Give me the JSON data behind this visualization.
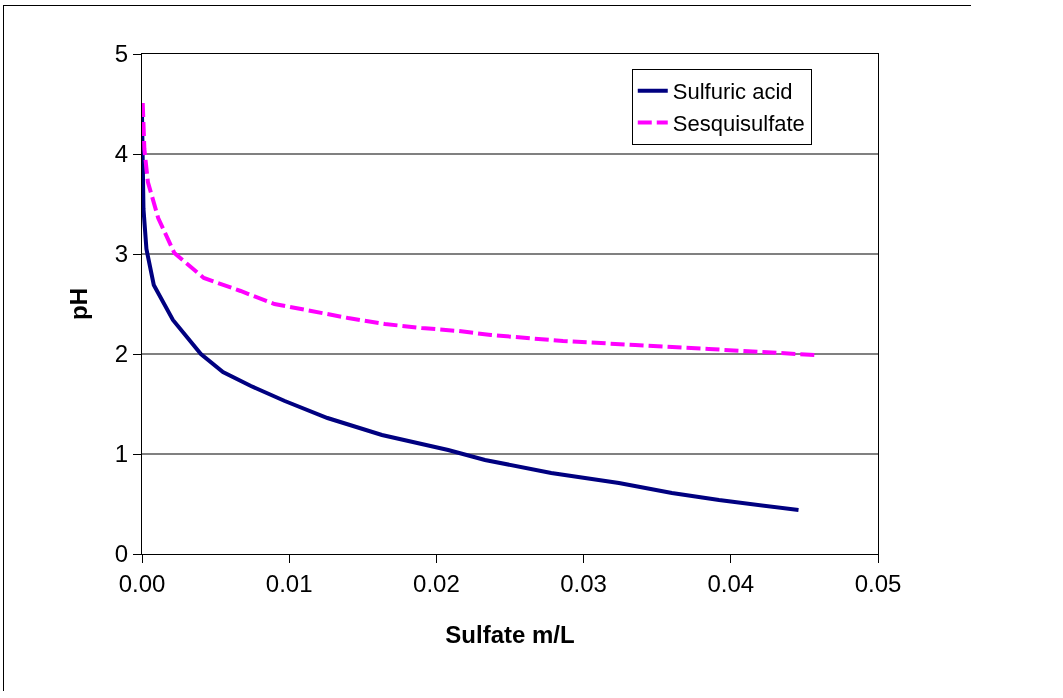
{
  "chart_data": {
    "type": "line",
    "xlabel": "Sulfate m/L",
    "ylabel": "pH",
    "xlim": [
      0,
      0.05
    ],
    "ylim": [
      0,
      5
    ],
    "xticks": [
      {
        "value": 0,
        "label": "0.00"
      },
      {
        "value": 0.01,
        "label": "0.01"
      },
      {
        "value": 0.02,
        "label": "0.02"
      },
      {
        "value": 0.03,
        "label": "0.03"
      },
      {
        "value": 0.04,
        "label": "0.04"
      },
      {
        "value": 0.05,
        "label": "0.05"
      }
    ],
    "yticks": [
      0,
      1,
      2,
      3,
      4,
      5
    ],
    "grid": "y",
    "legend": "top right",
    "marker": "none",
    "series": [
      {
        "name": "Sulfuric acid",
        "color": "#000080",
        "line_style": "solid",
        "x": [
          0,
          0.0001,
          0.00016,
          0.0003,
          0.0008,
          0.0021,
          0.004,
          0.0055,
          0.0074,
          0.0097,
          0.0126,
          0.0163,
          0.0208,
          0.0233,
          0.0278,
          0.0324,
          0.036,
          0.0392,
          0.0446
        ],
        "values": [
          4.4,
          3.45,
          3.33,
          3.05,
          2.69,
          2.34,
          2.0,
          1.82,
          1.68,
          1.53,
          1.36,
          1.19,
          1.04,
          0.94,
          0.81,
          0.71,
          0.61,
          0.54,
          0.44
        ]
      },
      {
        "name": "Sesquisulfate",
        "color": "#ff00ff",
        "line_style": "dashed",
        "x": [
          5e-05,
          0.00016,
          0.0004,
          0.0011,
          0.0022,
          0.0042,
          0.0067,
          0.009,
          0.0115,
          0.014,
          0.0165,
          0.019,
          0.0215,
          0.0237,
          0.0286,
          0.0335,
          0.0385,
          0.0433,
          0.0457
        ],
        "values": [
          4.51,
          4.05,
          3.72,
          3.36,
          3.01,
          2.76,
          2.63,
          2.5,
          2.43,
          2.36,
          2.3,
          2.26,
          2.23,
          2.19,
          2.13,
          2.09,
          2.05,
          2.01,
          1.99
        ]
      }
    ]
  }
}
